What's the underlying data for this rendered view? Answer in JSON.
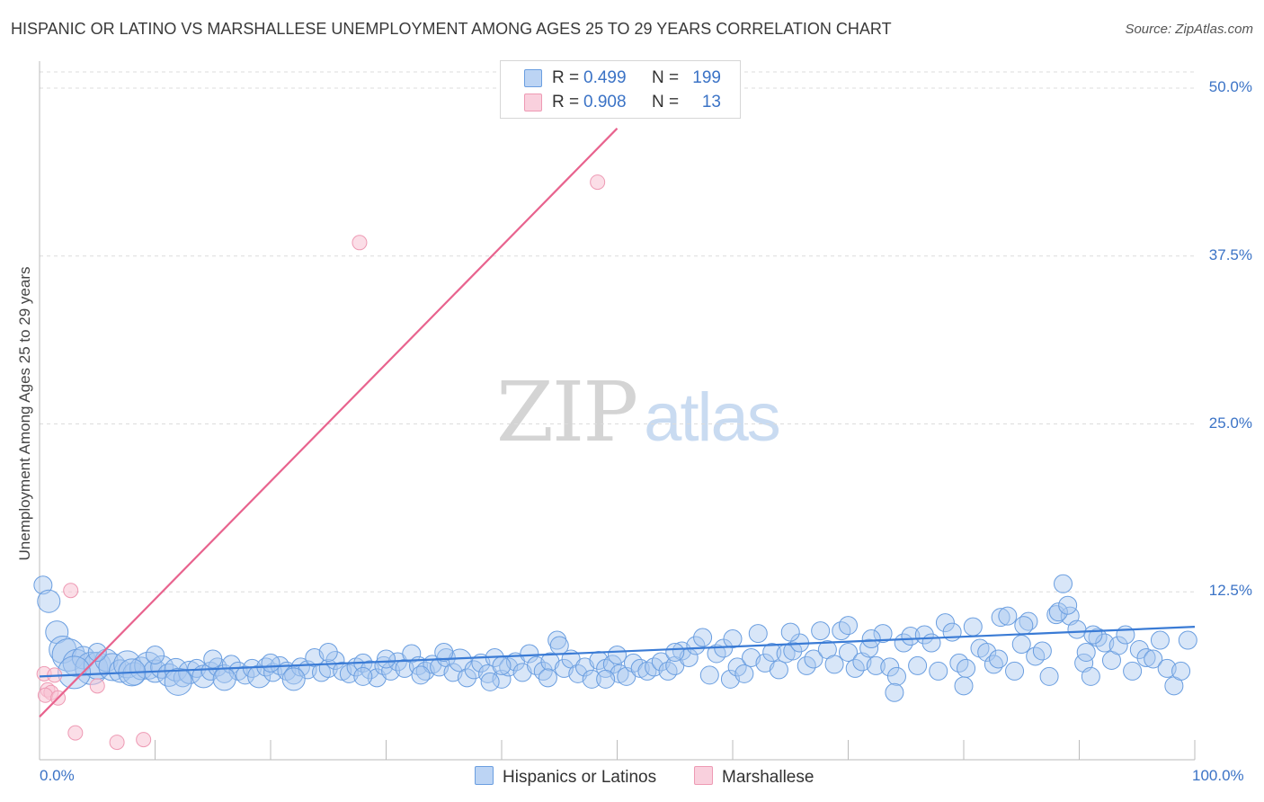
{
  "title": "HISPANIC OR LATINO VS MARSHALLESE UNEMPLOYMENT AMONG AGES 25 TO 29 YEARS CORRELATION CHART",
  "source": "Source: ZipAtlas.com",
  "watermark": {
    "zip": "ZIP",
    "atlas": "atlas"
  },
  "legend": {
    "series": [
      {
        "label": "R =",
        "r": "0.499",
        "n_label": "N =",
        "n": "199"
      },
      {
        "label": "R =",
        "r": "0.908",
        "n_label": "N =",
        "n": "13"
      }
    ]
  },
  "bottom_legend": [
    "Hispanics or Latinos",
    "Marshallese"
  ],
  "colors": {
    "blue_fill": "#a9c7ef",
    "blue_stroke": "#6a9ee0",
    "blue_line": "#3a7bd5",
    "pink_fill": "#f7c3d3",
    "pink_stroke": "#ee9ab4",
    "pink_line": "#e8638e",
    "tick_text": "#3b73c6",
    "grid": "#dcdcdc"
  },
  "chart_data": {
    "type": "scatter",
    "title": "HISPANIC OR LATINO VS MARSHALLESE UNEMPLOYMENT AMONG AGES 25 TO 29 YEARS CORRELATION CHART",
    "xlabel": "",
    "ylabel": "Unemployment Among Ages 25 to 29 years",
    "xlim": [
      0,
      100
    ],
    "ylim": [
      0,
      50
    ],
    "x_tick_labels": [
      "0.0%",
      "100.0%"
    ],
    "y_ticks": [
      12.5,
      25.0,
      37.5,
      50.0
    ],
    "y_tick_labels": [
      "12.5%",
      "25.0%",
      "37.5%",
      "50.0%"
    ],
    "grid": true,
    "legend_position": "top-center",
    "series": [
      {
        "name": "Hispanics or Latinos",
        "r": 0.499,
        "n": 199,
        "trend": {
          "x": [
            0,
            100
          ],
          "y": [
            6.2,
            9.9
          ]
        },
        "points": [
          [
            0.3,
            13.0,
            2
          ],
          [
            0.8,
            11.8,
            3
          ],
          [
            1.5,
            9.5,
            3
          ],
          [
            2.0,
            8.2,
            4
          ],
          [
            2.5,
            7.8,
            5
          ],
          [
            3.2,
            7.2,
            4
          ],
          [
            3.8,
            7.6,
            3
          ],
          [
            4.5,
            6.8,
            5
          ],
          [
            5.0,
            7.0,
            4
          ],
          [
            5.8,
            7.4,
            3
          ],
          [
            6.3,
            6.9,
            4
          ],
          [
            7.0,
            6.6,
            3
          ],
          [
            7.6,
            7.1,
            4
          ],
          [
            8.2,
            6.4,
            3
          ],
          [
            8.8,
            6.8,
            3
          ],
          [
            9.4,
            7.0,
            4
          ],
          [
            10.0,
            6.6,
            3
          ],
          [
            10.6,
            6.9,
            3
          ],
          [
            11.2,
            6.3,
            3
          ],
          [
            11.8,
            6.7,
            3
          ],
          [
            12.4,
            6.1,
            2
          ],
          [
            13.0,
            6.5,
            3
          ],
          [
            13.6,
            6.8,
            2
          ],
          [
            14.2,
            6.2,
            3
          ],
          [
            14.8,
            6.6,
            2
          ],
          [
            15.4,
            6.9,
            2
          ],
          [
            16.0,
            6.4,
            2
          ],
          [
            16.6,
            7.1,
            2
          ],
          [
            17.2,
            6.6,
            2
          ],
          [
            17.8,
            6.3,
            2
          ],
          [
            18.4,
            6.8,
            2
          ],
          [
            19.0,
            6.2,
            3
          ],
          [
            19.6,
            6.9,
            2
          ],
          [
            20.2,
            6.5,
            2
          ],
          [
            20.8,
            7.0,
            2
          ],
          [
            21.4,
            6.6,
            2
          ],
          [
            22.0,
            6.3,
            2
          ],
          [
            22.6,
            6.9,
            2
          ],
          [
            23.2,
            6.7,
            2
          ],
          [
            23.8,
            7.6,
            2
          ],
          [
            24.4,
            6.5,
            2
          ],
          [
            25.0,
            6.8,
            2
          ],
          [
            25.6,
            7.4,
            2
          ],
          [
            26.2,
            6.6,
            2
          ],
          [
            26.8,
            6.4,
            2
          ],
          [
            27.4,
            6.9,
            2
          ],
          [
            28.0,
            7.2,
            2
          ],
          [
            28.6,
            6.7,
            2
          ],
          [
            29.2,
            6.1,
            2
          ],
          [
            29.8,
            7.0,
            2
          ],
          [
            30.4,
            6.6,
            2
          ],
          [
            31.0,
            7.3,
            2
          ],
          [
            31.6,
            6.8,
            2
          ],
          [
            32.2,
            7.9,
            2
          ],
          [
            32.8,
            7.0,
            2
          ],
          [
            33.4,
            6.6,
            2
          ],
          [
            34.0,
            7.1,
            2
          ],
          [
            34.6,
            6.9,
            2
          ],
          [
            35.2,
            7.6,
            2
          ],
          [
            35.8,
            6.5,
            2
          ],
          [
            36.4,
            7.4,
            3
          ],
          [
            37.0,
            6.1,
            2
          ],
          [
            37.6,
            6.7,
            2
          ],
          [
            38.2,
            7.2,
            2
          ],
          [
            38.8,
            6.4,
            2
          ],
          [
            39.4,
            7.6,
            2
          ],
          [
            40.0,
            6.0,
            2
          ],
          [
            40.6,
            6.9,
            2
          ],
          [
            41.2,
            7.3,
            2
          ],
          [
            41.8,
            6.5,
            2
          ],
          [
            42.4,
            7.9,
            2
          ],
          [
            43.0,
            7.0,
            2
          ],
          [
            43.6,
            6.6,
            2
          ],
          [
            44.2,
            7.3,
            2
          ],
          [
            44.8,
            8.9,
            2
          ],
          [
            45.4,
            6.8,
            2
          ],
          [
            46.0,
            7.5,
            2
          ],
          [
            46.6,
            6.4,
            2
          ],
          [
            47.2,
            6.9,
            2
          ],
          [
            47.8,
            6.0,
            2
          ],
          [
            48.4,
            7.4,
            2
          ],
          [
            49.0,
            6.8,
            2
          ],
          [
            49.6,
            7.1,
            2
          ],
          [
            50.2,
            6.4,
            2
          ],
          [
            50.8,
            6.2,
            2
          ],
          [
            51.4,
            7.2,
            2
          ],
          [
            52.0,
            6.8,
            2
          ],
          [
            52.6,
            6.6,
            2
          ],
          [
            53.2,
            6.9,
            2
          ],
          [
            53.8,
            7.3,
            2
          ],
          [
            54.4,
            6.6,
            2
          ],
          [
            55.0,
            7.0,
            2
          ],
          [
            55.6,
            8.1,
            2
          ],
          [
            56.2,
            7.6,
            2
          ],
          [
            56.8,
            8.5,
            2
          ],
          [
            57.4,
            9.1,
            2
          ],
          [
            58.0,
            6.3,
            2
          ],
          [
            58.6,
            7.9,
            2
          ],
          [
            59.2,
            8.3,
            2
          ],
          [
            59.8,
            6.0,
            2
          ],
          [
            60.4,
            6.9,
            2
          ],
          [
            61.0,
            6.4,
            2
          ],
          [
            61.6,
            7.6,
            2
          ],
          [
            62.2,
            9.4,
            2
          ],
          [
            62.8,
            7.2,
            2
          ],
          [
            63.4,
            8.0,
            2
          ],
          [
            64.0,
            6.7,
            2
          ],
          [
            64.6,
            7.9,
            2
          ],
          [
            65.2,
            8.1,
            2
          ],
          [
            65.8,
            8.7,
            2
          ],
          [
            66.4,
            7.0,
            2
          ],
          [
            67.0,
            7.5,
            2
          ],
          [
            67.6,
            9.6,
            2
          ],
          [
            68.2,
            8.2,
            2
          ],
          [
            68.8,
            7.1,
            2
          ],
          [
            69.4,
            9.6,
            2
          ],
          [
            70.0,
            8.0,
            2
          ],
          [
            70.6,
            6.8,
            2
          ],
          [
            71.2,
            7.3,
            2
          ],
          [
            71.8,
            8.3,
            2
          ],
          [
            72.4,
            7.0,
            2
          ],
          [
            73.0,
            9.4,
            2
          ],
          [
            73.6,
            6.9,
            2
          ],
          [
            74.2,
            6.2,
            2
          ],
          [
            74.8,
            8.7,
            2
          ],
          [
            75.4,
            9.2,
            2
          ],
          [
            76.0,
            7.0,
            2
          ],
          [
            76.6,
            9.3,
            2
          ],
          [
            77.2,
            8.7,
            2
          ],
          [
            77.8,
            6.6,
            2
          ],
          [
            78.4,
            10.2,
            2
          ],
          [
            79.0,
            9.5,
            2
          ],
          [
            79.6,
            7.2,
            2
          ],
          [
            80.2,
            6.8,
            2
          ],
          [
            80.8,
            9.9,
            2
          ],
          [
            81.4,
            8.3,
            2
          ],
          [
            82.0,
            8.0,
            2
          ],
          [
            82.6,
            7.1,
            2
          ],
          [
            83.2,
            10.6,
            2
          ],
          [
            83.8,
            10.7,
            2
          ],
          [
            84.4,
            6.6,
            2
          ],
          [
            85.0,
            8.6,
            2
          ],
          [
            85.6,
            10.3,
            2
          ],
          [
            86.2,
            7.7,
            2
          ],
          [
            86.8,
            8.1,
            2
          ],
          [
            87.4,
            6.2,
            2
          ],
          [
            88.0,
            10.8,
            2
          ],
          [
            88.6,
            13.1,
            2
          ],
          [
            89.2,
            10.7,
            2
          ],
          [
            89.8,
            9.7,
            2
          ],
          [
            90.4,
            7.2,
            2
          ],
          [
            91.0,
            6.2,
            2
          ],
          [
            91.6,
            9.1,
            2
          ],
          [
            92.2,
            8.7,
            2
          ],
          [
            92.8,
            7.4,
            2
          ],
          [
            93.4,
            8.5,
            2
          ],
          [
            94.0,
            9.3,
            2
          ],
          [
            94.6,
            6.6,
            2
          ],
          [
            95.2,
            8.2,
            2
          ],
          [
            95.8,
            7.6,
            2
          ],
          [
            96.4,
            7.5,
            2
          ],
          [
            97.0,
            8.9,
            2
          ],
          [
            97.6,
            6.8,
            2
          ],
          [
            98.2,
            5.5,
            2
          ],
          [
            98.8,
            6.6,
            2
          ],
          [
            99.4,
            8.9,
            2
          ],
          [
            88.2,
            11.0,
            2
          ],
          [
            89.0,
            11.5,
            2
          ],
          [
            90.6,
            8.0,
            2
          ],
          [
            91.2,
            9.3,
            2
          ],
          [
            85.2,
            10.0,
            2
          ],
          [
            83.0,
            7.5,
            2
          ],
          [
            72.0,
            9.0,
            2
          ],
          [
            74.0,
            5.0,
            2
          ],
          [
            80.0,
            5.5,
            2
          ],
          [
            70.0,
            10.0,
            2
          ],
          [
            65.0,
            9.5,
            2
          ],
          [
            60.0,
            9.0,
            2
          ],
          [
            55.0,
            8.0,
            2
          ],
          [
            50.0,
            7.8,
            2
          ],
          [
            45.0,
            8.5,
            2
          ],
          [
            40.0,
            7.0,
            2
          ],
          [
            35.0,
            8.0,
            2
          ],
          [
            30.0,
            7.5,
            2
          ],
          [
            25.0,
            8.0,
            2
          ],
          [
            20.0,
            7.2,
            2
          ],
          [
            15.0,
            7.5,
            2
          ],
          [
            10.0,
            7.8,
            2
          ],
          [
            5.0,
            8.0,
            2
          ],
          [
            3.0,
            6.5,
            5
          ],
          [
            8.0,
            6.5,
            4
          ],
          [
            12.0,
            5.8,
            4
          ],
          [
            16.0,
            6.0,
            3
          ],
          [
            22.0,
            6.0,
            3
          ],
          [
            28.0,
            6.2,
            2
          ],
          [
            33.0,
            6.3,
            2
          ],
          [
            39.0,
            5.8,
            2
          ],
          [
            44.0,
            6.1,
            2
          ],
          [
            49.0,
            6.0,
            2
          ]
        ]
      },
      {
        "name": "Marshallese",
        "r": 0.908,
        "n": 13,
        "trend": {
          "x": [
            0,
            50
          ],
          "y": [
            3.2,
            47.0
          ]
        },
        "points": [
          [
            0.4,
            6.4
          ],
          [
            0.7,
            5.2
          ],
          [
            1.0,
            5.0
          ],
          [
            1.3,
            6.3
          ],
          [
            2.7,
            12.6
          ],
          [
            3.1,
            2.0
          ],
          [
            5.0,
            5.5
          ],
          [
            6.7,
            1.3
          ],
          [
            9.0,
            1.5
          ],
          [
            27.7,
            38.5
          ],
          [
            48.3,
            43.0
          ],
          [
            0.5,
            4.8
          ],
          [
            1.6,
            4.6
          ]
        ]
      }
    ]
  }
}
